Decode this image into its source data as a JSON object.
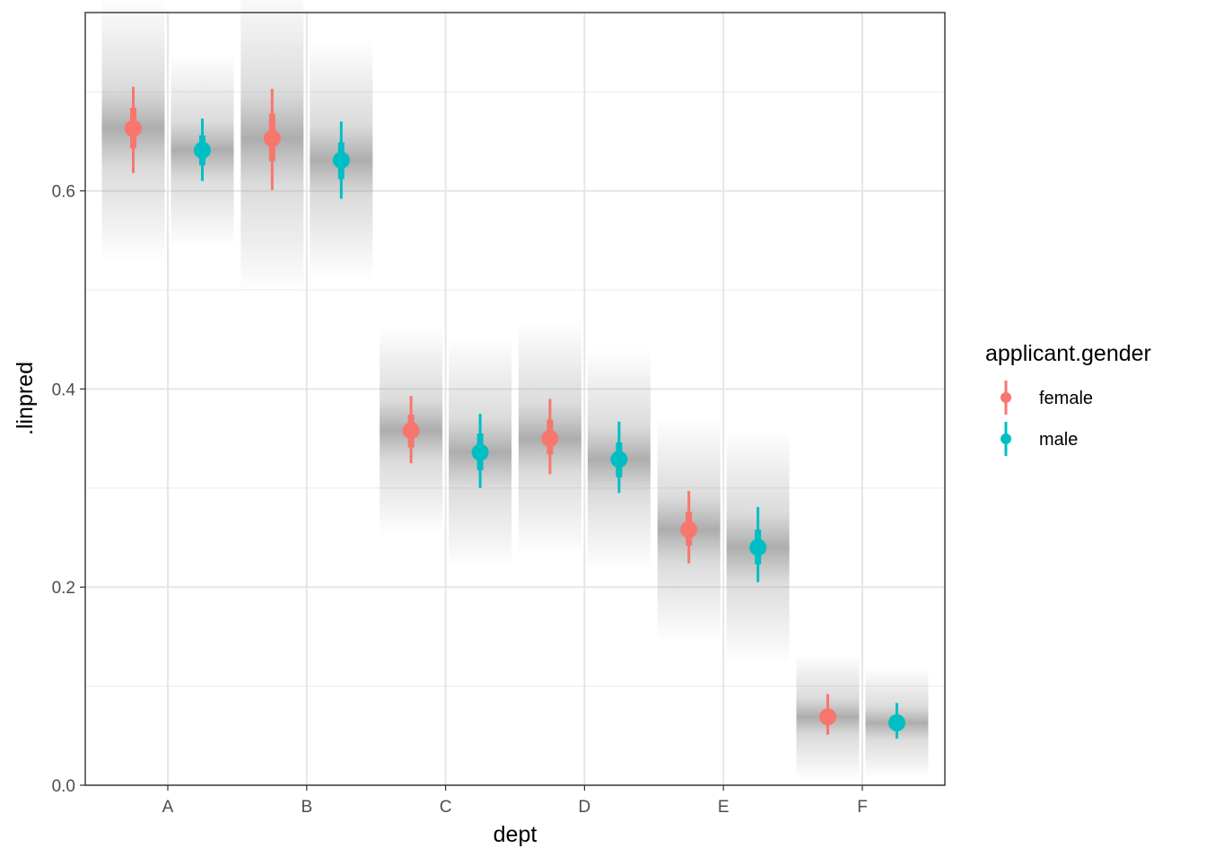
{
  "chart_data": {
    "type": "scatter",
    "xlabel": "dept",
    "ylabel": ".linpred",
    "categories": [
      "A",
      "B",
      "C",
      "D",
      "E",
      "F"
    ],
    "ylim": [
      0,
      0.78
    ],
    "y_ticks": [
      0.0,
      0.2,
      0.4,
      0.6
    ],
    "y_tick_labels": [
      "0.0",
      "0.2",
      "0.4",
      "0.6"
    ],
    "grid": true,
    "legend": {
      "title": "applicant.gender",
      "position": "right",
      "entries": [
        "female",
        "male"
      ]
    },
    "series": [
      {
        "name": "female",
        "color": "#F8766D",
        "points": [
          {
            "category": "A",
            "median": 0.663,
            "inner": [
              0.643,
              0.684
            ],
            "outer": [
              0.618,
              0.705
            ]
          },
          {
            "category": "B",
            "median": 0.653,
            "inner": [
              0.63,
              0.678
            ],
            "outer": [
              0.601,
              0.703
            ]
          },
          {
            "category": "C",
            "median": 0.358,
            "inner": [
              0.341,
              0.374
            ],
            "outer": [
              0.325,
              0.393
            ]
          },
          {
            "category": "D",
            "median": 0.35,
            "inner": [
              0.334,
              0.369
            ],
            "outer": [
              0.314,
              0.39
            ]
          },
          {
            "category": "E",
            "median": 0.258,
            "inner": [
              0.242,
              0.276
            ],
            "outer": [
              0.224,
              0.297
            ]
          },
          {
            "category": "F",
            "median": 0.069,
            "inner": [
              0.061,
              0.077
            ],
            "outer": [
              0.051,
              0.092
            ]
          }
        ]
      },
      {
        "name": "male",
        "color": "#00BFC4",
        "points": [
          {
            "category": "A",
            "median": 0.641,
            "inner": [
              0.626,
              0.656
            ],
            "outer": [
              0.61,
              0.673
            ]
          },
          {
            "category": "B",
            "median": 0.631,
            "inner": [
              0.612,
              0.649
            ],
            "outer": [
              0.592,
              0.67
            ]
          },
          {
            "category": "C",
            "median": 0.336,
            "inner": [
              0.318,
              0.355
            ],
            "outer": [
              0.3,
              0.375
            ]
          },
          {
            "category": "D",
            "median": 0.329,
            "inner": [
              0.311,
              0.346
            ],
            "outer": [
              0.295,
              0.367
            ]
          },
          {
            "category": "E",
            "median": 0.24,
            "inner": [
              0.223,
              0.258
            ],
            "outer": [
              0.205,
              0.281
            ]
          },
          {
            "category": "F",
            "median": 0.063,
            "inner": [
              0.055,
              0.071
            ],
            "outer": [
              0.047,
              0.083
            ]
          }
        ]
      }
    ]
  }
}
